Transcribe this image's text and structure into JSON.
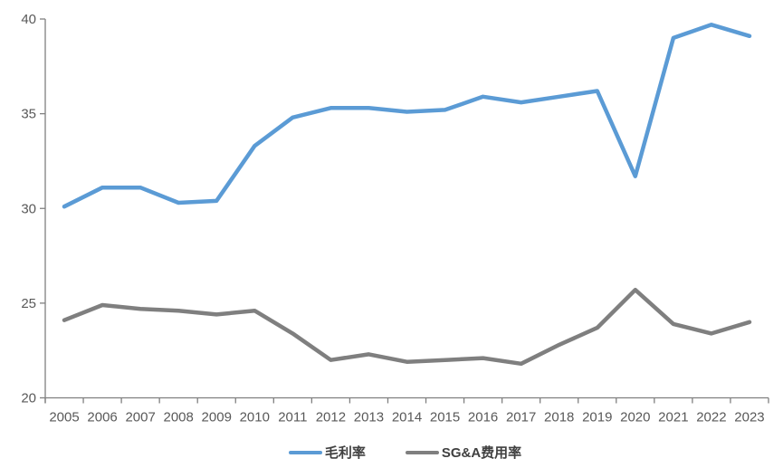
{
  "chart_data": {
    "type": "line",
    "title": "",
    "xlabel": "",
    "ylabel": "",
    "grid": false,
    "legend_position": "bottom",
    "ylim": [
      20,
      40
    ],
    "yticks": [
      40,
      35,
      30,
      25,
      20
    ],
    "axis_color": "#808080",
    "tick_label_color": "#595959",
    "categories": [
      "2005",
      "2006",
      "2007",
      "2008",
      "2009",
      "2010",
      "2011",
      "2012",
      "2013",
      "2014",
      "2015",
      "2016",
      "2017",
      "2018",
      "2019",
      "2020",
      "2021",
      "2022",
      "2023"
    ],
    "series": [
      {
        "name": "毛利率",
        "color": "#5B9BD5",
        "values": [
          30.1,
          31.1,
          31.1,
          30.3,
          30.4,
          33.3,
          34.8,
          35.3,
          35.3,
          35.1,
          35.2,
          35.9,
          35.6,
          35.9,
          36.2,
          31.7,
          39.0,
          39.7,
          39.1
        ]
      },
      {
        "name": "SG&A费用率",
        "color": "#7F7F7F",
        "values": [
          24.1,
          24.9,
          24.7,
          24.6,
          24.4,
          24.6,
          23.4,
          22.0,
          22.3,
          21.9,
          22.0,
          22.1,
          21.8,
          22.8,
          23.7,
          25.7,
          23.9,
          23.4,
          24.0
        ]
      }
    ]
  }
}
